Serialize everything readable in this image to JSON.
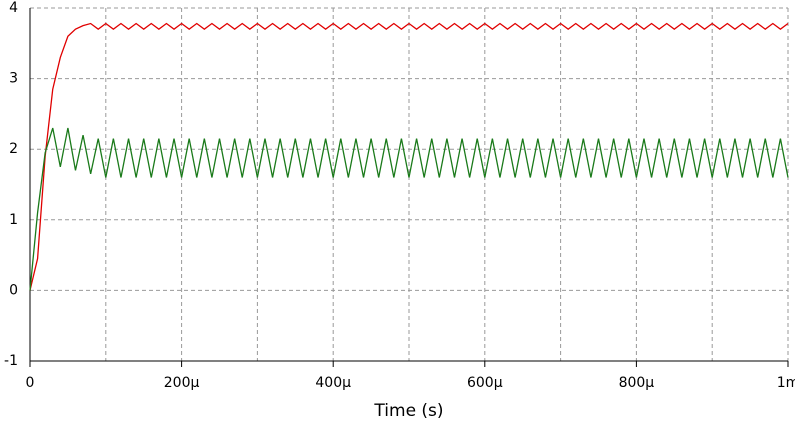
{
  "chart_data": {
    "type": "line",
    "xlabel": "Time (s)",
    "x": [
      0,
      1e-05,
      2e-05,
      3e-05,
      4e-05,
      5e-05,
      6e-05,
      7e-05,
      8e-05,
      9e-05,
      0.0001,
      0.00011,
      0.00012,
      0.00013,
      0.00014,
      0.00015,
      0.00016,
      0.00017,
      0.00018,
      0.00019,
      0.0002,
      0.00021,
      0.00022,
      0.00023,
      0.00024,
      0.00025,
      0.00026,
      0.00027,
      0.00028,
      0.00029,
      0.0003,
      0.00031,
      0.00032,
      0.00033,
      0.00034,
      0.00035,
      0.00036,
      0.00037,
      0.00038,
      0.00039,
      0.0004,
      0.00041,
      0.00042,
      0.00043,
      0.00044,
      0.00045,
      0.00046,
      0.00047,
      0.00048,
      0.00049,
      0.0005,
      0.00051,
      0.00052,
      0.00053,
      0.00054,
      0.00055,
      0.00056,
      0.00057,
      0.00058,
      0.00059,
      0.0006,
      0.00061,
      0.00062,
      0.00063,
      0.00064,
      0.00065,
      0.00066,
      0.00067,
      0.00068,
      0.00069,
      0.0007,
      0.00071,
      0.00072,
      0.00073,
      0.00074,
      0.00075,
      0.00076,
      0.00077,
      0.00078,
      0.00079,
      0.0008,
      0.00081,
      0.00082,
      0.00083,
      0.00084,
      0.00085,
      0.00086,
      0.00087,
      0.00088,
      0.00089,
      0.0009,
      0.00091,
      0.00092,
      0.00093,
      0.00094,
      0.00095,
      0.00096,
      0.00097,
      0.00098,
      0.00099,
      0.001
    ],
    "series": [
      {
        "color": "#e00000",
        "values": [
          0,
          0.45,
          1.9,
          2.85,
          3.3,
          3.6,
          3.7,
          3.75,
          3.78,
          3.7,
          3.78,
          3.7,
          3.78,
          3.7,
          3.78,
          3.7,
          3.78,
          3.7,
          3.78,
          3.7,
          3.78,
          3.7,
          3.78,
          3.7,
          3.78,
          3.7,
          3.78,
          3.7,
          3.78,
          3.7,
          3.78,
          3.7,
          3.78,
          3.7,
          3.78,
          3.7,
          3.78,
          3.7,
          3.78,
          3.7,
          3.78,
          3.7,
          3.78,
          3.7,
          3.78,
          3.7,
          3.78,
          3.7,
          3.78,
          3.7,
          3.78,
          3.7,
          3.78,
          3.7,
          3.78,
          3.7,
          3.78,
          3.7,
          3.78,
          3.7,
          3.78,
          3.7,
          3.78,
          3.7,
          3.78,
          3.7,
          3.78,
          3.7,
          3.78,
          3.7,
          3.78,
          3.7,
          3.78,
          3.7,
          3.78,
          3.7,
          3.78,
          3.7,
          3.78,
          3.7,
          3.78,
          3.7,
          3.78,
          3.7,
          3.78,
          3.7,
          3.78,
          3.7,
          3.78,
          3.7,
          3.78,
          3.7,
          3.78,
          3.7,
          3.78,
          3.7,
          3.78,
          3.7,
          3.78,
          3.7,
          3.78
        ]
      },
      {
        "color": "#1a7a1a",
        "values": [
          0,
          1.1,
          1.95,
          2.3,
          1.75,
          2.3,
          1.7,
          2.2,
          1.65,
          2.15,
          1.6,
          2.15,
          1.6,
          2.15,
          1.6,
          2.15,
          1.6,
          2.15,
          1.6,
          2.15,
          1.6,
          2.15,
          1.6,
          2.15,
          1.6,
          2.15,
          1.6,
          2.15,
          1.6,
          2.15,
          1.6,
          2.15,
          1.6,
          2.15,
          1.6,
          2.15,
          1.6,
          2.15,
          1.6,
          2.15,
          1.6,
          2.15,
          1.6,
          2.15,
          1.6,
          2.15,
          1.6,
          2.15,
          1.6,
          2.15,
          1.6,
          2.15,
          1.6,
          2.15,
          1.6,
          2.15,
          1.6,
          2.15,
          1.6,
          2.15,
          1.6,
          2.15,
          1.6,
          2.15,
          1.6,
          2.15,
          1.6,
          2.15,
          1.6,
          2.15,
          1.6,
          2.15,
          1.6,
          2.15,
          1.6,
          2.15,
          1.6,
          2.15,
          1.6,
          2.15,
          1.6,
          2.15,
          1.6,
          2.15,
          1.6,
          2.15,
          1.6,
          2.15,
          1.6,
          2.15,
          1.6,
          2.15,
          1.6,
          2.15,
          1.6,
          2.15,
          1.6,
          2.15,
          1.6,
          2.15,
          1.6
        ]
      }
    ],
    "xlim": [
      0,
      0.001
    ],
    "xticks": [
      {
        "value": 0,
        "label": "0"
      },
      {
        "value": 0.0002,
        "label": "200µ"
      },
      {
        "value": 0.0004,
        "label": "400µ"
      },
      {
        "value": 0.0006,
        "label": "600µ"
      },
      {
        "value": 0.0008,
        "label": "800µ"
      },
      {
        "value": 0.001,
        "label": "1m"
      }
    ],
    "xminor": [
      0.0001,
      0.0003,
      0.0005,
      0.0007,
      0.0009
    ],
    "ylim": [
      -1,
      4
    ],
    "yticks": [
      -1,
      0,
      1,
      2,
      3,
      4
    ],
    "grid": true
  }
}
